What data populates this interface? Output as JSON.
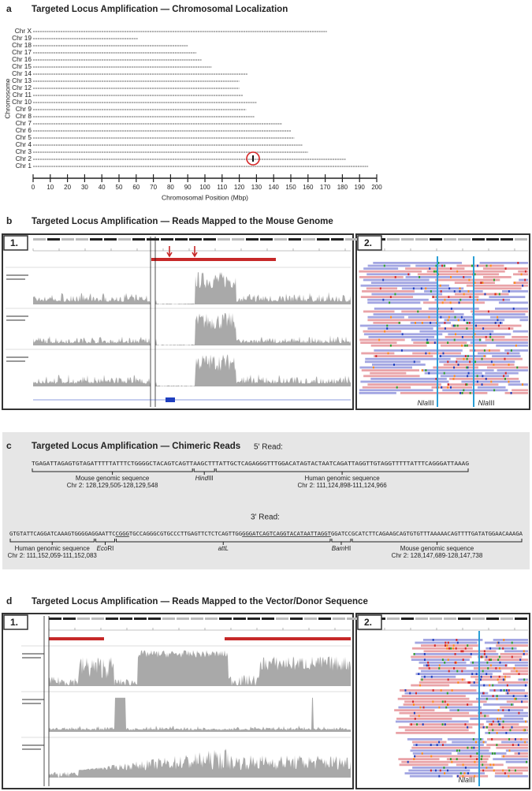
{
  "chart_data": {
    "type": "bar",
    "panel_label": "a",
    "title": "Targeted Locus Amplification — Chromosomal Localization",
    "x_label": "Chromosomal Position (Mbp)",
    "y_label": "Chromosome",
    "categories": [
      "Chr X",
      "Chr 19",
      "Chr 18",
      "Chr 17",
      "Chr 16",
      "Chr 15",
      "Chr 14",
      "Chr 13",
      "Chr 12",
      "Chr 11",
      "Chr 10",
      "Chr 9",
      "Chr 8",
      "Chr 7",
      "Chr 6",
      "Chr 5",
      "Chr 4",
      "Chr 3",
      "Chr 2",
      "Chr 1"
    ],
    "values": [
      171,
      61,
      90,
      95,
      98,
      104,
      125,
      120,
      120,
      122,
      130,
      124,
      129,
      145,
      150,
      152,
      157,
      160,
      182,
      195
    ],
    "color": "#666666",
    "xlim": [
      0,
      200
    ],
    "xticks": [
      0,
      10,
      20,
      30,
      40,
      50,
      60,
      70,
      80,
      90,
      100,
      110,
      120,
      130,
      140,
      150,
      160,
      170,
      180,
      190,
      200
    ],
    "highlight": {
      "category": "Chr 2",
      "x": 128,
      "color": "#d62728"
    }
  },
  "panels": {
    "b": {
      "label": "b",
      "title": "Targeted Locus Amplification — Reads Mapped to the Mouse Genome",
      "inset_labels": [
        "1.",
        "2."
      ],
      "site_labels": [
        [
          {
            "text": "Nla",
            "italic": true
          },
          {
            "text": "III"
          }
        ],
        [
          {
            "text": "Nla",
            "italic": true
          },
          {
            "text": "III"
          }
        ]
      ]
    },
    "c": {
      "label": "c",
      "title": "Targeted Locus Amplification — Chimeric Reads",
      "reads": [
        {
          "heading": "5' Read:",
          "segments": [
            {
              "text": "TGAGATTAGAGTGTAGATTTTTATTTCTGGGGCTACAGTCAGTT",
              "color": "#d62728"
            },
            {
              "text": "AAGCTT",
              "color": "#1f77b4"
            },
            {
              "text": "TATTGCTCAGAGGGTTTGGACATAGTACTAATCAGATTAGGTTGTAGGTTTTTATTTCAGGGATTAAAG",
              "color": "#222222"
            }
          ],
          "annotations": [
            [
              [
                {
                  "text": "Mouse genomic sequence"
                }
              ],
              [
                {
                  "text": "Chr 2: 128,129,505-128,129,548"
                }
              ]
            ],
            [
              [
                {
                  "text": "Hind",
                  "italic": true
                },
                {
                  "text": "III"
                }
              ]
            ],
            [
              [
                {
                  "text": "Human genomic sequence"
                }
              ],
              [
                {
                  "text": "Chr 2: 111,124,898-111,124,966"
                }
              ]
            ]
          ]
        },
        {
          "heading": "3' Read:",
          "segments": [
            {
              "text": "GTGTATTCAGGATCAAAGTGGGGAG",
              "color": "#222222"
            },
            {
              "text": "GAATTC",
              "color": "#2ca02c"
            },
            {
              "text": "CGGG",
              "color": "#7b3fa0",
              "underline": true
            },
            {
              "text": "TGCCAGGGCGTGCCCTTGAGTTCTCTCAGTTGG",
              "color": "#2ca02c"
            },
            {
              "text": "GGGATCAGTCAGGTACATAATTAGGT",
              "color": "#7b3fa0",
              "underline": true
            },
            {
              "text": "GGATCC",
              "color": "#2ca02c"
            },
            {
              "text": "GCATCTTCAGAAGCAGTGTGTTTAAAAACAGTTTTGATATGGAACAAAGA",
              "color": "#d62728"
            }
          ],
          "annotations": [
            [
              [
                {
                  "text": "Human genomic sequence"
                }
              ],
              [
                {
                  "text": "Chr 2: 111,152,059-111,152,083"
                }
              ]
            ],
            [
              [
                {
                  "text": "Eco",
                  "italic": true
                },
                {
                  "text": "RI"
                }
              ]
            ],
            [
              [
                {
                  "text": "attL",
                  "italic": true
                }
              ]
            ],
            [
              [
                {
                  "text": "Bam",
                  "italic": true
                },
                {
                  "text": "HI"
                }
              ]
            ],
            [
              [
                {
                  "text": "Mouse genomic sequence"
                }
              ],
              [
                {
                  "text": "Chr 2: 128,147,689-128,147,738"
                }
              ]
            ]
          ]
        }
      ]
    },
    "d": {
      "label": "d",
      "title": "Targeted Locus Amplification — Reads Mapped to the Vector/Donor Sequence",
      "inset_labels": [
        "1.",
        "2."
      ],
      "site_labels": [
        [
          {
            "text": "Nla",
            "italic": true
          },
          {
            "text": "III"
          }
        ]
      ]
    }
  }
}
